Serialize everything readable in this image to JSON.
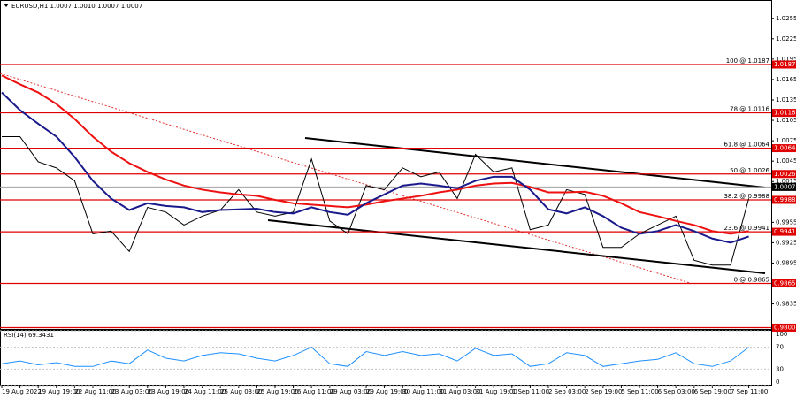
{
  "chart_data": {
    "type": "line",
    "title": "EURUSD,H1  1.0007 1.0010 1.0007 1.0007",
    "categories": [
      "19 Aug 2022",
      null,
      "19 Aug 19:00",
      null,
      "22 Aug 11:00",
      null,
      "23 Aug 03:00",
      null,
      "23 Aug 19:00",
      null,
      "24 Aug 11:00",
      null,
      "25 Aug 03:00",
      null,
      "25 Aug 19:00",
      null,
      "26 Aug 11:00",
      null,
      "29 Aug 03:00",
      null,
      "29 Aug 19:00",
      null,
      "30 Aug 11:00",
      null,
      "31 Aug 03:00",
      null,
      "31 Aug 19:00",
      null,
      "1 Sep 11:00",
      null,
      "2 Sep 03:00",
      null,
      "2 Sep 19:00",
      null,
      "5 Sep 11:00",
      null,
      "6 Sep 03:00",
      null,
      "6 Sep 19:00",
      null,
      "7 Sep 11:00",
      null
    ],
    "series": [
      {
        "color": "#000000",
        "values": [
          1.0081,
          1.0081,
          1.0044,
          1.0035,
          1.0016,
          0.9938,
          0.9942,
          0.9912,
          0.9977,
          0.997,
          0.9951,
          0.9964,
          0.9973,
          1.0003,
          0.997,
          0.9964,
          0.997,
          1.0048,
          0.9957,
          0.9938,
          1.0009,
          1.0003,
          1.0035,
          1.0022,
          1.0029,
          0.999,
          1.0055,
          1.0029,
          1.0035,
          0.9944,
          0.9951,
          1.0003,
          0.9996,
          0.9918,
          0.9918,
          0.9938,
          0.9951,
          0.9964,
          0.9899,
          0.9892,
          0.9892,
          0.999
        ]
      },
      {
        "color": "#ee1111",
        "values": [
          1.0171,
          1.0158,
          1.0146,
          1.0129,
          1.0107,
          1.0081,
          1.0059,
          1.0042,
          1.0029,
          1.0018,
          1.0009,
          1.0003,
          0.9999,
          0.9996,
          0.9994,
          0.9988,
          0.9983,
          0.9981,
          0.9979,
          0.9977,
          0.9981,
          0.9986,
          0.999,
          0.9994,
          0.9999,
          1.0003,
          1.0009,
          1.0012,
          1.0013,
          1.0007,
          0.9999,
          0.9999,
          1.0,
          0.9994,
          0.9983,
          0.997,
          0.9964,
          0.9957,
          0.9951,
          0.9942,
          0.9938,
          0.9942
        ]
      },
      {
        "color": "#1a1a8c",
        "values": [
          1.0146,
          1.012,
          1.01,
          1.0081,
          1.0051,
          1.0016,
          0.999,
          0.9973,
          0.9983,
          0.9979,
          0.9977,
          0.997,
          0.9973,
          0.9974,
          0.9975,
          0.997,
          0.9968,
          0.9977,
          0.997,
          0.9966,
          0.9983,
          0.9996,
          1.0009,
          1.0012,
          1.0009,
          1.0005,
          1.0016,
          1.0022,
          1.0022,
          1.0003,
          0.9974,
          0.9968,
          0.9977,
          0.9964,
          0.9947,
          0.9938,
          0.9942,
          0.9951,
          0.9942,
          0.9931,
          0.9925,
          0.9934
        ]
      }
    ],
    "ylim": [
      0.9798,
      1.0282
    ],
    "yticks": [
      1.0255,
      1.0225,
      1.0195,
      1.0165,
      1.0135,
      1.0105,
      1.0075,
      1.0045,
      1.0015,
      0.9955,
      0.9925,
      0.9895,
      0.9835
    ],
    "levels": [
      {
        "label": "100 @ 1.0187",
        "value": 1.0187,
        "tag": "1.0187"
      },
      {
        "label": "78 @ 1.0116",
        "value": 1.0116,
        "tag": "1.0116"
      },
      {
        "label": "61.8 @ 1.0064",
        "value": 1.0064,
        "tag": "1.0064"
      },
      {
        "label": "50 @ 1.0026",
        "value": 1.0026,
        "tag": "1.0026"
      },
      {
        "label": "38.2 @ 0.9988",
        "value": 0.9988,
        "tag": "0.9988"
      },
      {
        "label": "23.6 @ 0.9941",
        "value": 0.9941,
        "tag": "0.9941"
      },
      {
        "label": "0 @ 0.9865",
        "value": 0.9865,
        "tag": "0.9865"
      },
      {
        "value": 0.98,
        "tag": "0.9800"
      }
    ],
    "level_color": "#e00000",
    "current_price": {
      "value": 1.0007,
      "tag": "1.0007"
    },
    "rsi": {
      "label": "RSI(14) 69.3431",
      "color": "#1e90ff",
      "values": [
        40,
        45,
        38,
        42,
        35,
        35,
        45,
        40,
        65,
        50,
        45,
        55,
        60,
        58,
        50,
        45,
        55,
        70,
        40,
        35,
        62,
        55,
        62,
        55,
        58,
        45,
        68,
        55,
        58,
        35,
        40,
        60,
        55,
        35,
        40,
        45,
        48,
        60,
        40,
        35,
        45,
        70
      ],
      "ylim": [
        0,
        100
      ],
      "yticks": [
        100,
        70,
        30,
        0
      ]
    }
  }
}
